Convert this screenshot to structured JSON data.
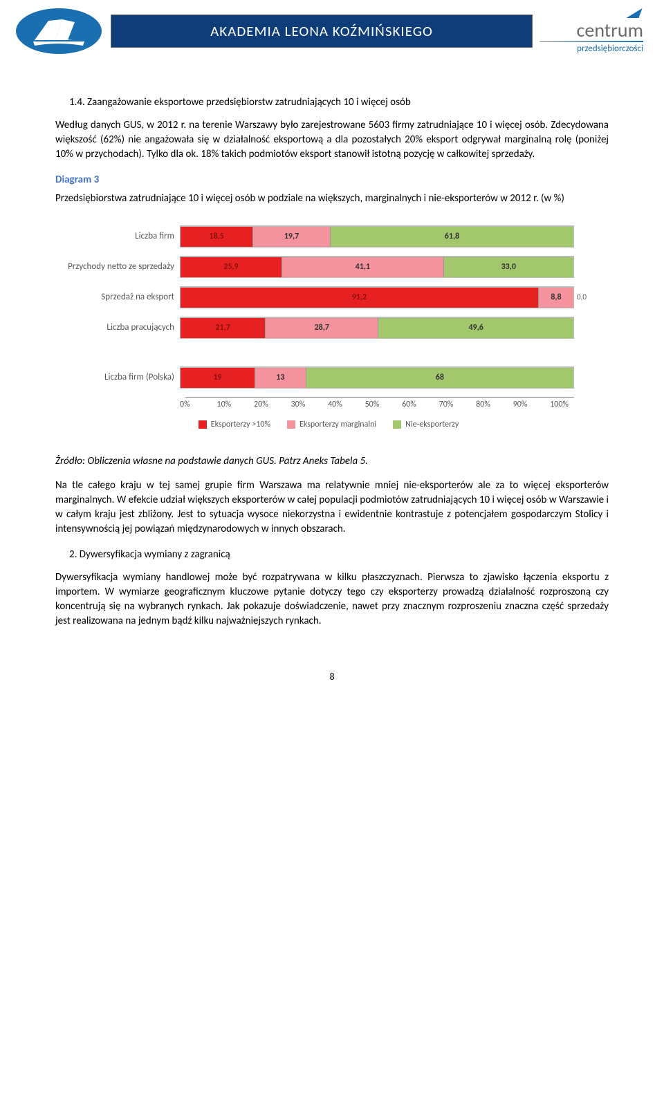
{
  "header": {
    "banner": "AKADEMIA LEONA KOŹMIŃSKIEGO",
    "right_top": "centrum",
    "right_sub": "przedsiębiorczości"
  },
  "section14": {
    "heading": "1.4.  Zaangażowanie eksportowe przedsiębiorstw zatrudniających 10 i więcej osób",
    "p1": "Według danych GUS,  w 2012 r.  na terenie Warszawy było zarejestrowane 5603 firmy zatrudniające 10 i więcej osób.  Zdecydowana większość (62%) nie angażowała się w działalność eksportową a dla pozostałych 20% eksport odgrywał marginalną rolę (poniżej 10% w przychodach). Tylko dla ok. 18% takich podmiotów eksport stanowił istotną pozycję w całkowitej sprzedaży."
  },
  "diagram": {
    "label": "Diagram 3",
    "title": "Przedsiębiorstwa zatrudniające 10 i więcej osób w podziale na większych, marginalnych i nie-eksporterów w 2012 r. (w %)",
    "rows": [
      {
        "label": "Liczba firm",
        "vals": [
          18.5,
          19.7,
          61.8
        ],
        "texts": [
          "18,5",
          "19,7",
          "61,8"
        ],
        "extra": ""
      },
      {
        "label": "Przychody netto ze sprzedaży",
        "vals": [
          25.9,
          41.1,
          33.0
        ],
        "texts": [
          "25,9",
          "41,1",
          "33,0"
        ],
        "extra": ""
      },
      {
        "label": "Sprzedaż na eksport",
        "vals": [
          91.2,
          8.8,
          0.0
        ],
        "texts": [
          "91,2",
          "8,8",
          ""
        ],
        "extra": "0,0"
      },
      {
        "label": "Liczba pracujących",
        "vals": [
          21.7,
          28.7,
          49.6
        ],
        "texts": [
          "21,7",
          "28,7",
          "49,6"
        ],
        "extra": ""
      },
      {
        "label": "Liczba firm (Polska)",
        "vals": [
          19,
          13,
          68
        ],
        "texts": [
          "19",
          "13",
          "68"
        ],
        "extra": "",
        "spaced": true
      }
    ],
    "axis": [
      "0%",
      "10%",
      "20%",
      "30%",
      "40%",
      "50%",
      "60%",
      "70%",
      "80%",
      "90%",
      "100%"
    ],
    "legend": [
      "Eksporterzy >10%",
      "Eksporterzy marginalni",
      "Nie-eksporterzy"
    ],
    "colors": {
      "red": "#e72121",
      "pink": "#f4929d",
      "green": "#a2c76c"
    }
  },
  "source": "Źródło: Obliczenia własne na podstawie danych GUS. Patrz Aneks Tabela 5.",
  "p2": "Na tle całego kraju w tej samej grupie firm  Warszawa ma relatywnie mniej nie-eksporterów ale za to więcej eksporterów marginalnych. W efekcie udział większych eksporterów w całej populacji podmiotów zatrudniających 10 i więcej osób w Warszawie i w całym kraju jest zbliżony. Jest to sytuacja wysoce niekorzystna i ewidentnie kontrastuje z potencjałem gospodarczym Stolicy i intensywnością jej powiązań międzynarodowych w innych obszarach.",
  "section2": {
    "heading": "2.   Dywersyfikacja wymiany z zagranicą",
    "p": "Dywersyfikacja wymiany handlowej może być rozpatrywana w kilku płaszczyznach. Pierwsza to zjawisko łączenia eksportu z importem.  W wymiarze geograficznym kluczowe pytanie dotyczy tego czy eksporterzy prowadzą działalność  rozproszoną czy koncentrują się na wybranych rynkach. Jak pokazuje doświadczenie, nawet  przy znacznym rozproszeniu  znaczna część sprzedaży jest realizowana na jednym bądź kilku najważniejszych rynkach."
  },
  "page": "8"
}
